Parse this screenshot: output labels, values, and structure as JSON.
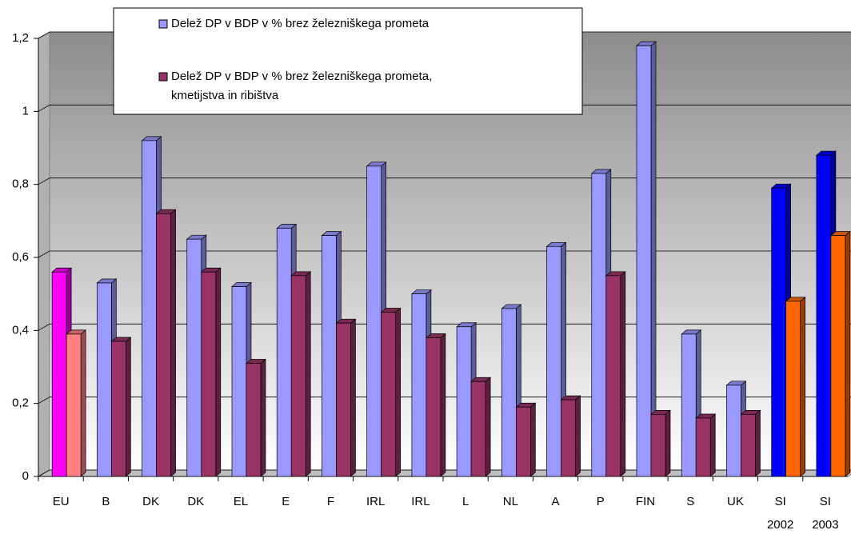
{
  "chart_data": {
    "type": "bar3d",
    "categories": [
      "EU",
      "B",
      "DK",
      "DK",
      "EL",
      "E",
      "F",
      "IRL",
      "IRL",
      "L",
      "NL",
      "A",
      "P",
      "FIN",
      "S",
      "UK",
      "SI",
      "SI"
    ],
    "category_sublabels": [
      null,
      null,
      null,
      null,
      null,
      null,
      null,
      null,
      null,
      null,
      null,
      null,
      null,
      null,
      null,
      null,
      "2002",
      "2003"
    ],
    "series": [
      {
        "name": "Delež DP v BDP v % brez železniškega prometa",
        "color": "#9999ff",
        "colors": [
          "#ff00ff",
          "#9999ff",
          "#9999ff",
          "#9999ff",
          "#9999ff",
          "#9999ff",
          "#9999ff",
          "#9999ff",
          "#9999ff",
          "#9999ff",
          "#9999ff",
          "#9999ff",
          "#9999ff",
          "#9999ff",
          "#9999ff",
          "#9999ff",
          "#0000ff",
          "#0000ff"
        ],
        "values": [
          0.56,
          0.53,
          0.92,
          0.65,
          0.52,
          0.68,
          0.66,
          0.85,
          0.5,
          0.41,
          0.46,
          0.63,
          0.83,
          1.18,
          0.39,
          0.25,
          0.79,
          0.88
        ]
      },
      {
        "name": "Delež DP v BDP v % brez železniškega prometa, kmetijstva in ribištva",
        "color": "#993366",
        "colors": [
          "#ff8080",
          "#993366",
          "#993366",
          "#993366",
          "#993366",
          "#993366",
          "#993366",
          "#993366",
          "#993366",
          "#993366",
          "#993366",
          "#993366",
          "#993366",
          "#993366",
          "#993366",
          "#993366",
          "#ff6600",
          "#ff6600"
        ],
        "values": [
          0.39,
          0.37,
          0.72,
          0.56,
          0.31,
          0.55,
          0.42,
          0.45,
          0.38,
          0.26,
          0.19,
          0.21,
          0.55,
          0.17,
          0.16,
          0.17,
          0.48,
          0.66
        ]
      }
    ],
    "ylim": [
      0,
      1.2
    ],
    "yticks": [
      0,
      {
        "value": 0.2,
        "label": "0,2"
      },
      {
        "value": 0.4,
        "label": "0,4"
      },
      {
        "value": 0.6,
        "label": "0,6"
      },
      {
        "value": 0.8,
        "label": "0,8"
      },
      1,
      {
        "value": 1.2,
        "label": "1,2"
      }
    ],
    "grid": true
  }
}
